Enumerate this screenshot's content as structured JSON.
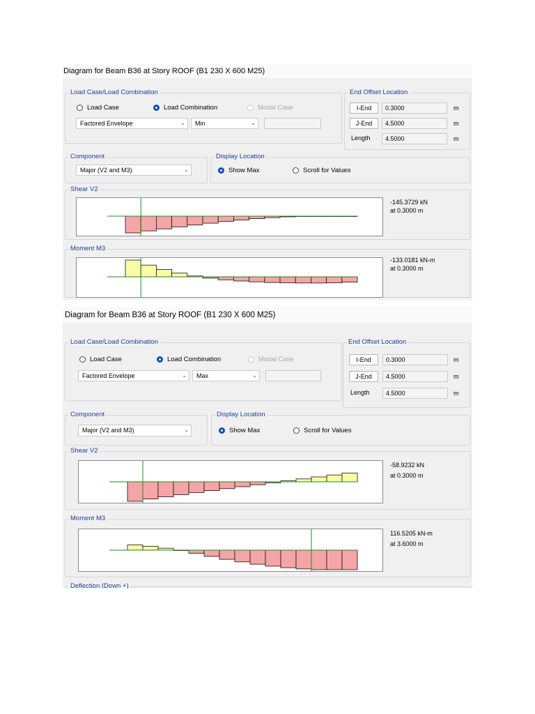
{
  "panels": [
    {
      "title": "Diagram for Beam B36 at Story ROOF (B1 230 X 600 M25)",
      "load_case_group_label": "Load Case/Load Combination",
      "radio_load_case": "Load Case",
      "radio_load_combination": "Load Combination",
      "radio_modal_case": "Modal Case",
      "combo_name": "Factored Envelope",
      "combo_type": "Min",
      "extra_field": "",
      "end_offset_label": "End Offset Location",
      "i_end_button": "I-End",
      "i_end_value": "0.3000",
      "j_end_button": "J-End",
      "j_end_value": "4.5000",
      "length_label": "Length",
      "length_value": "4.5000",
      "unit": "m",
      "component_label": "Component",
      "component_value": "Major (V2 and M3)",
      "display_location_label": "Display Location",
      "show_max": "Show Max",
      "scroll_values": "Scroll for Values",
      "shear_label": "Shear V2",
      "shear_value": "-145.3729 kN",
      "shear_location": "at 0.3000 m",
      "moment_label": "Moment M3",
      "moment_value": "-133.0181 kN-m",
      "moment_location": "at 0.3000 m",
      "shear_diagram": {
        "x_range": [
          0,
          4.5
        ],
        "mark_at": 0.3,
        "values": [
          -1.0,
          -0.88,
          -0.76,
          -0.64,
          -0.53,
          -0.42,
          -0.32,
          -0.23,
          -0.15,
          -0.09,
          -0.04,
          -0.01,
          0.0,
          0.0,
          0.0
        ]
      },
      "moment_diagram": {
        "x_range": [
          0,
          4.5
        ],
        "mark_at": 0.3,
        "values": [
          1.0,
          0.7,
          0.44,
          0.22,
          0.05,
          -0.08,
          -0.18,
          -0.25,
          -0.3,
          -0.34,
          -0.36,
          -0.37,
          -0.37,
          -0.36,
          -0.32
        ]
      }
    },
    {
      "title": "Diagram for Beam B36 at Story ROOF (B1 230 X 600 M25)",
      "load_case_group_label": "Load Case/Load Combination",
      "radio_load_case": "Load Case",
      "radio_load_combination": "Load Combination",
      "radio_modal_case": "Modal Case",
      "combo_name": "Factored Envelope",
      "combo_type": "Max",
      "extra_field": "",
      "end_offset_label": "End Offset Location",
      "i_end_button": "I-End",
      "i_end_value": "0.3000",
      "j_end_button": "J-End",
      "j_end_value": "4.5000",
      "length_label": "Length",
      "length_value": "4.5000",
      "unit": "m",
      "component_label": "Component",
      "component_value": "Major (V2 and M3)",
      "display_location_label": "Display Location",
      "show_max": "Show Max",
      "scroll_values": "Scroll for Values",
      "shear_label": "Shear V2",
      "shear_value": "-58.9232 kN",
      "shear_location": "at 0.3000 m",
      "moment_label": "Moment M3",
      "moment_value": "116.5205 kN-m",
      "moment_location": "at 3.6000 m",
      "deflection_label": "Deflection (Down +)",
      "shear_diagram": {
        "x_range": [
          0,
          4.5
        ],
        "mark_at": 0.3,
        "values": [
          -1.0,
          -0.88,
          -0.77,
          -0.66,
          -0.55,
          -0.45,
          -0.35,
          -0.25,
          -0.15,
          -0.05,
          0.05,
          0.15,
          0.25,
          0.35,
          0.45
        ]
      },
      "moment_diagram": {
        "x_range": [
          0,
          4.5
        ],
        "mark_at": 3.6,
        "values": [
          0.27,
          0.2,
          0.1,
          -0.02,
          -0.16,
          -0.32,
          -0.47,
          -0.6,
          -0.72,
          -0.82,
          -0.9,
          -0.96,
          -1.0,
          -1.0,
          -1.0
        ]
      }
    }
  ],
  "colors": {
    "negative_fill": "#f5a5a5",
    "positive_fill": "#fbfba8",
    "axis_line": "#1e8a1e",
    "outline": "#111111",
    "label_blue": "#1f3f8f"
  }
}
